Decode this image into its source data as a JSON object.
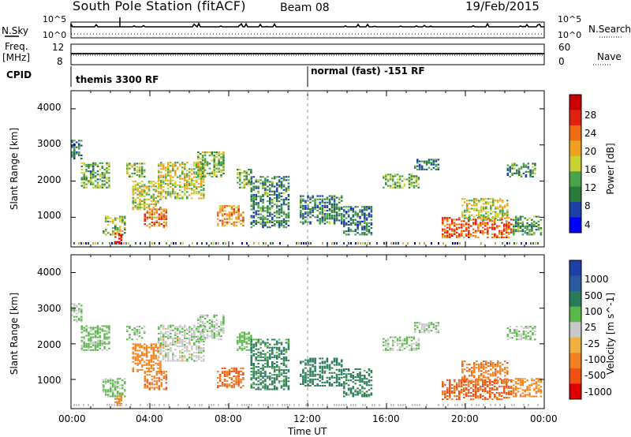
{
  "header": {
    "station": "South Pole Station (fitACF)",
    "beam": "Beam 08",
    "date": "19/Feb/2015"
  },
  "top_panel": {
    "left_label": "N.Sky",
    "left_ticks": [
      "10^5",
      "10^0"
    ],
    "right_label": "N.Search",
    "right_ticks": [
      "10^5",
      "10^0"
    ],
    "freq_label_line1": "Freq.",
    "freq_label_line2": "[MHz]",
    "freq_ticks": [
      "12",
      "8"
    ],
    "nave_label": "Nave",
    "nave_ticks": [
      "60",
      "0"
    ],
    "cpid_label": "CPID",
    "cpid_modes": [
      {
        "name": "themis 3300 RF",
        "start_hour": 0
      },
      {
        "name": "normal (fast) -151 RF",
        "start_hour": 12
      }
    ]
  },
  "colors": {
    "power_scale": [
      "#0000ff",
      "#1f3fa8",
      "#2a7a3a",
      "#4aa34a",
      "#c8d232",
      "#f0a020",
      "#f06a10",
      "#e02010",
      "#cc0000"
    ],
    "velocity_scale": [
      "#1f3fa8",
      "#2a5aa0",
      "#2a7a5a",
      "#5ab84a",
      "#c8c8c8",
      "#f0b040",
      "#f08020",
      "#f05010",
      "#e00000"
    ]
  },
  "chart_data": [
    {
      "type": "heatmap",
      "title": "Power",
      "ylabel": "Slant Range [km]",
      "xlabel": "Time UT",
      "xlim": [
        0,
        24
      ],
      "ylim": [
        180,
        4500
      ],
      "x_tick_labels": [
        "00:00",
        "04:00",
        "08:00",
        "12:00",
        "16:00",
        "20:00",
        "00:00"
      ],
      "y_tick_labels": [
        "1000",
        "2000",
        "3000",
        "4000"
      ],
      "colorbar_label": "Power [dB]",
      "colorbar_ticks": [
        "28",
        "24",
        "20",
        "16",
        "12",
        "8",
        "4"
      ],
      "colorbar_range": [
        0,
        30
      ]
    },
    {
      "type": "heatmap",
      "title": "Velocity",
      "ylabel": "Slant Range [km]",
      "xlabel": "Time UT",
      "xlim": [
        0,
        24
      ],
      "ylim": [
        180,
        4500
      ],
      "x_tick_labels": [
        "00:00",
        "04:00",
        "08:00",
        "12:00",
        "16:00",
        "20:00",
        "00:00"
      ],
      "y_tick_labels": [
        "1000",
        "2000",
        "3000",
        "4000"
      ],
      "colorbar_label": "Velocity [m s^-1]",
      "colorbar_ticks": [
        "1000",
        "500",
        "100",
        "25",
        "-25",
        "-100",
        "-500",
        "-1000"
      ]
    }
  ],
  "echo_regions": [
    {
      "t0": 0.0,
      "t1": 0.6,
      "r0": 2600,
      "r1": 3100,
      "pw": 8,
      "vel": 25
    },
    {
      "t0": 0.5,
      "t1": 2.0,
      "r0": 1800,
      "r1": 2500,
      "pw": 11,
      "vel": 50
    },
    {
      "t0": 1.6,
      "t1": 2.8,
      "r0": 500,
      "r1": 1000,
      "pw": 14,
      "vel": 30
    },
    {
      "t0": 2.2,
      "t1": 2.6,
      "r0": 250,
      "r1": 550,
      "pw": 26,
      "vel": -150
    },
    {
      "t0": 2.8,
      "t1": 3.8,
      "r0": 2100,
      "r1": 2500,
      "pw": 13,
      "vel": 25
    },
    {
      "t0": 3.1,
      "t1": 4.6,
      "r0": 1200,
      "r1": 2000,
      "pw": 15,
      "vel": -200
    },
    {
      "t0": 3.7,
      "t1": 4.9,
      "r0": 700,
      "r1": 1200,
      "pw": 21,
      "vel": -400
    },
    {
      "t0": 4.4,
      "t1": 6.8,
      "r0": 1500,
      "r1": 2500,
      "pw": 15,
      "vel": 10
    },
    {
      "t0": 6.4,
      "t1": 7.8,
      "r0": 2100,
      "r1": 2800,
      "pw": 13,
      "vel": 15
    },
    {
      "t0": 7.4,
      "t1": 8.8,
      "r0": 750,
      "r1": 1300,
      "pw": 20,
      "vel": -500
    },
    {
      "t0": 8.4,
      "t1": 9.2,
      "r0": 1800,
      "r1": 2300,
      "pw": 12,
      "vel": 60
    },
    {
      "t0": 9.1,
      "t1": 11.1,
      "r0": 700,
      "r1": 2100,
      "pw": 9,
      "vel": 150
    },
    {
      "t0": 11.6,
      "t1": 13.8,
      "r0": 800,
      "r1": 1600,
      "pw": 9,
      "vel": 200
    },
    {
      "t0": 13.8,
      "t1": 15.3,
      "r0": 500,
      "r1": 1300,
      "pw": 8,
      "vel": 180
    },
    {
      "t0": 15.8,
      "t1": 17.7,
      "r0": 1800,
      "r1": 2200,
      "pw": 12,
      "vel": 20
    },
    {
      "t0": 17.4,
      "t1": 18.7,
      "r0": 2300,
      "r1": 2600,
      "pw": 8,
      "vel": 20
    },
    {
      "t0": 18.8,
      "t1": 22.4,
      "r0": 420,
      "r1": 1000,
      "pw": 22,
      "vel": -600
    },
    {
      "t0": 19.8,
      "t1": 22.2,
      "r0": 900,
      "r1": 1500,
      "pw": 15,
      "vel": -400
    },
    {
      "t0": 22.1,
      "t1": 23.6,
      "r0": 2100,
      "r1": 2500,
      "pw": 10,
      "vel": 30
    },
    {
      "t0": 22.4,
      "t1": 23.9,
      "r0": 500,
      "r1": 1000,
      "pw": 10,
      "vel": -150
    }
  ]
}
